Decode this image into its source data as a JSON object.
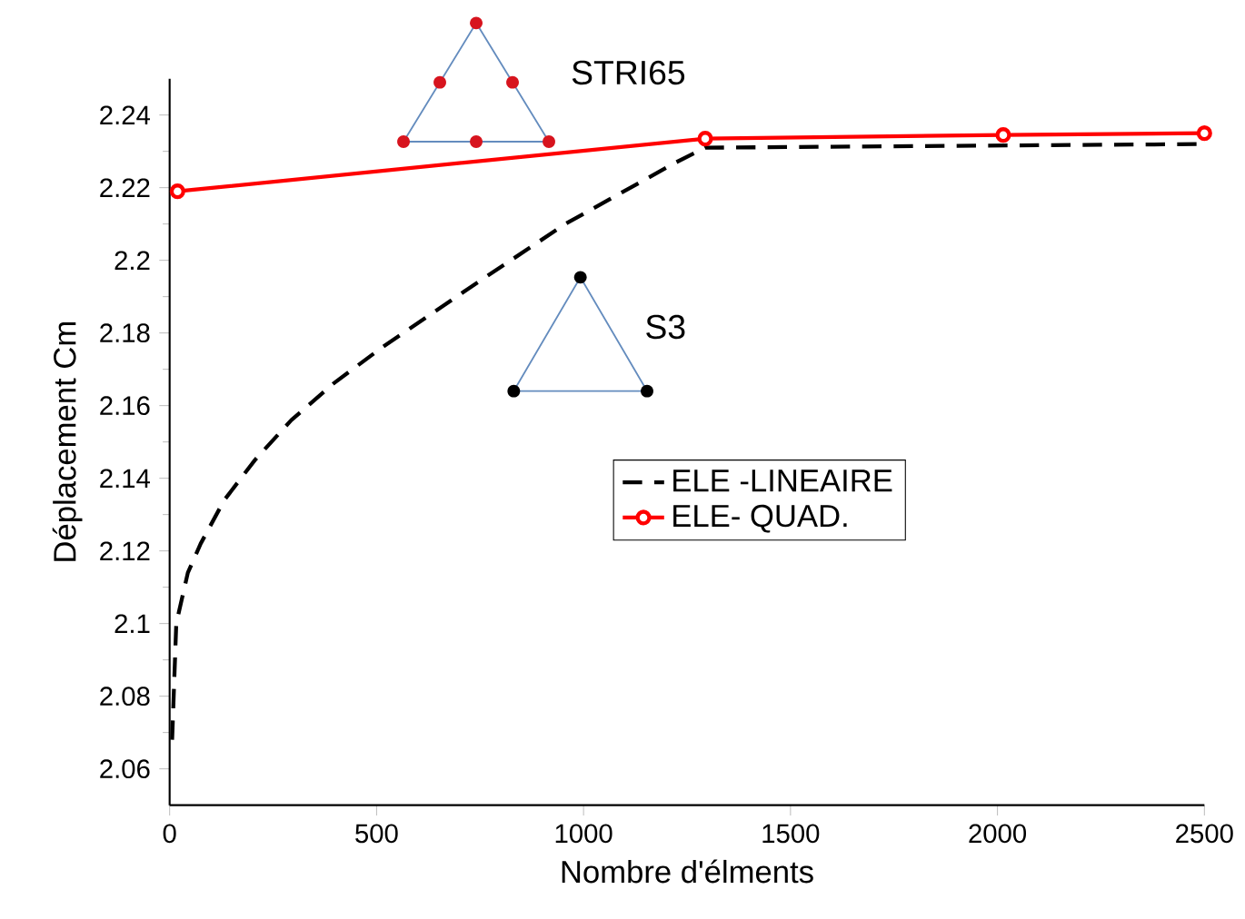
{
  "chart_data": {
    "type": "line",
    "xlabel": "Nombre d'élments",
    "ylabel": "Déplacement Cm",
    "xlim": [
      0,
      2500
    ],
    "xticks": [
      0,
      500,
      1000,
      1500,
      2000,
      2500
    ],
    "ylim": [
      2.05,
      2.25
    ],
    "yticks": [
      2.06,
      2.08,
      2.1,
      2.12,
      2.14,
      2.16,
      2.18,
      2.2,
      2.22,
      2.24
    ],
    "legend": "center",
    "grid": false,
    "annotations": [
      "STRI65",
      "S3"
    ],
    "series": [
      {
        "name": "ELE -LINEAIRE",
        "color": "#000000",
        "line_style": "dashed",
        "marker": "none",
        "x": [
          6,
          16,
          44,
          75,
          132,
          206,
          294,
          395,
          513,
          719,
          956,
          1224,
          1294,
          2500
        ],
        "values": [
          2.068,
          2.1,
          2.114,
          2.122,
          2.134,
          2.145,
          2.156,
          2.166,
          2.176,
          2.192,
          2.21,
          2.227,
          2.231,
          2.232
        ]
      },
      {
        "name": "ELE- QUAD.",
        "color": "#ff0000",
        "line_style": "solid",
        "marker": "circle",
        "x": [
          19,
          1294,
          2014,
          2500
        ],
        "values": [
          2.219,
          2.2335,
          2.2345,
          2.235
        ]
      }
    ]
  }
}
